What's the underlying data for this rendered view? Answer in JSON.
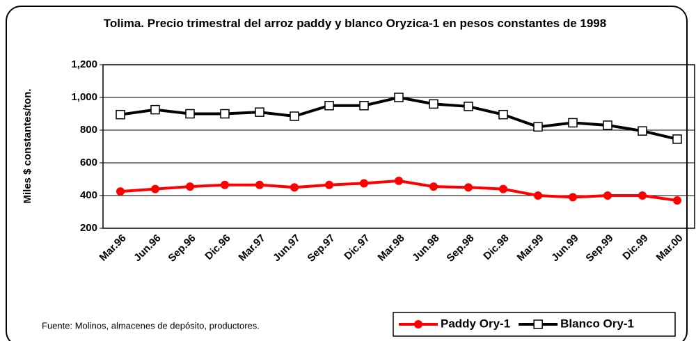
{
  "chart_data": {
    "type": "line",
    "title": "Tolima. Precio trimestral del arroz paddy y blanco Oryzica-1 en pesos constantes de 1998",
    "ylabel": "Miles $ constantes/ton.",
    "note": "Fuente: Molinos, almacenes de depósito, productores.",
    "categories": [
      "Mar.96",
      "Jun.96",
      "Sep.96",
      "Dic.96",
      "Mar.97",
      "Jun.97",
      "Sep.97",
      "Dic.97",
      "Mar.98",
      "Jun.98",
      "Sep.98",
      "Dic.98",
      "Mar.99",
      "Jun.99",
      "Sep.99",
      "Dic.99",
      "Mar.00"
    ],
    "series": [
      {
        "name": "Paddy Ory-1",
        "color": "#ff0000",
        "marker": "circle",
        "values": [
          425,
          440,
          455,
          465,
          465,
          450,
          465,
          475,
          490,
          455,
          450,
          440,
          400,
          390,
          400,
          400,
          370
        ]
      },
      {
        "name": "Blanco Ory-1",
        "color": "#000000",
        "marker": "square",
        "values": [
          895,
          925,
          900,
          900,
          910,
          885,
          950,
          950,
          1000,
          960,
          945,
          895,
          820,
          845,
          830,
          795,
          745
        ]
      }
    ],
    "ylim": [
      200,
      1200
    ],
    "yticks": [
      200,
      400,
      600,
      800,
      {
        "value": 1000,
        "label": "1,000"
      },
      {
        "value": 1200,
        "label": "1,200"
      }
    ],
    "grid": true,
    "legend": "bottom-right"
  }
}
